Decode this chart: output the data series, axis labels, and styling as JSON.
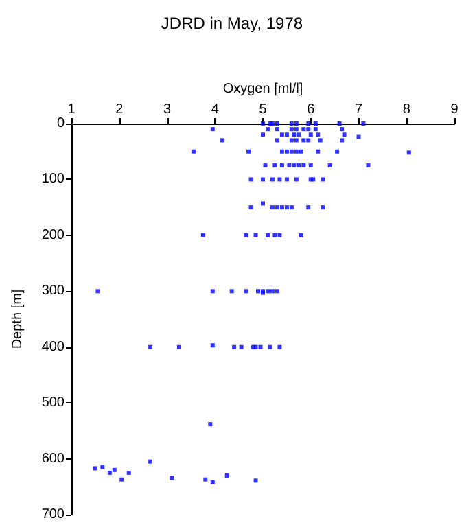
{
  "chart_data": {
    "type": "scatter",
    "title": "JDRD in May, 1978",
    "xlabel": "Oxygen [ml/l]",
    "ylabel": "Depth [m]",
    "x": [
      5.0,
      5.15,
      5.2,
      5.3,
      5.6,
      5.7,
      5.95,
      6.1,
      6.6,
      7.1,
      3.95,
      5.1,
      5.3,
      5.6,
      5.7,
      5.85,
      5.95,
      6.1,
      6.65,
      5.0,
      5.4,
      5.5,
      5.65,
      5.75,
      6.0,
      6.15,
      6.7,
      7.0,
      4.15,
      5.3,
      5.6,
      5.7,
      5.85,
      5.95,
      6.2,
      6.65,
      3.55,
      4.7,
      5.4,
      5.5,
      5.6,
      5.7,
      5.8,
      6.15,
      6.55,
      8.05,
      5.05,
      5.25,
      5.4,
      5.55,
      5.65,
      5.75,
      5.85,
      6.0,
      6.4,
      7.2,
      4.75,
      5.0,
      5.2,
      5.35,
      5.5,
      5.7,
      6.0,
      6.05,
      6.25,
      5.0,
      4.75,
      5.2,
      5.3,
      5.4,
      5.5,
      5.6,
      5.95,
      6.25,
      3.75,
      4.65,
      4.85,
      5.1,
      5.25,
      5.35,
      5.8,
      1.55,
      3.95,
      4.35,
      4.65,
      4.9,
      5.0,
      5.1,
      5.2,
      5.3,
      5.0,
      2.65,
      3.25,
      3.95,
      4.4,
      4.55,
      4.8,
      4.85,
      4.95,
      5.15,
      5.35,
      3.9,
      1.5,
      1.65,
      1.8,
      1.9,
      2.05,
      2.2,
      2.65,
      3.1,
      3.8,
      3.95,
      4.25,
      4.85
    ],
    "values": [
      0,
      0,
      0,
      0,
      0,
      0,
      0,
      0,
      0,
      0,
      10,
      10,
      10,
      10,
      10,
      10,
      10,
      10,
      10,
      20,
      20,
      20,
      20,
      20,
      20,
      20,
      20,
      24,
      30,
      30,
      30,
      30,
      30,
      30,
      30,
      30,
      50,
      50,
      50,
      50,
      50,
      50,
      50,
      50,
      50,
      52,
      75,
      75,
      75,
      75,
      75,
      75,
      75,
      75,
      75,
      75,
      100,
      100,
      100,
      100,
      100,
      100,
      100,
      100,
      100,
      143,
      150,
      150,
      150,
      150,
      150,
      150,
      150,
      150,
      200,
      200,
      200,
      200,
      200,
      200,
      200,
      300,
      300,
      300,
      300,
      300,
      300,
      300,
      300,
      300,
      303,
      400,
      400,
      397,
      400,
      400,
      400,
      400,
      400,
      400,
      400,
      538,
      617,
      615,
      625,
      620,
      637,
      625,
      605,
      634,
      637,
      642,
      630,
      639
    ],
    "color": "#0000ff",
    "marker": "square",
    "grid": false,
    "xlim": [
      1,
      9
    ],
    "xticks": [
      1,
      2,
      3,
      4,
      5,
      6,
      7,
      8,
      9
    ],
    "ylim": [
      700,
      0
    ],
    "yticks": [
      0,
      100,
      200,
      300,
      400,
      500,
      600,
      700
    ]
  }
}
